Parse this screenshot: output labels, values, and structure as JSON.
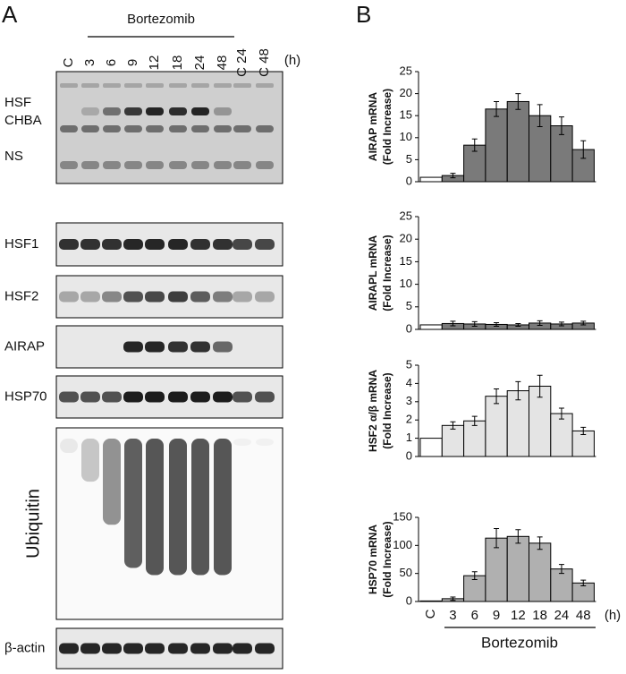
{
  "panel_a": {
    "label": "A",
    "treatment": "Bortezomib",
    "unit": "(h)",
    "lanes": [
      "C",
      "3",
      "6",
      "9",
      "12",
      "18",
      "24",
      "48",
      "C 24",
      "C 48"
    ],
    "emsa_labels": [
      "HSF",
      "CHBA",
      "NS"
    ],
    "blots": [
      "HSF1",
      "HSF2",
      "AIRAP",
      "HSP70",
      "Ubiquitin",
      "β-actin"
    ]
  },
  "panel_b_label": "B",
  "chart_data": [
    {
      "type": "bar",
      "ylabel": [
        "AIRAP mRNA",
        "(Fold Increase)"
      ],
      "values": [
        1,
        1.4,
        8.3,
        16.5,
        18.2,
        15,
        12.7,
        7.3
      ],
      "errors": [
        null,
        0.5,
        1.4,
        1.7,
        1.8,
        2.5,
        2.0,
        2.0
      ],
      "color": "#7a7a7a",
      "control_color": "#ffffff",
      "ylim": [
        0,
        25
      ],
      "yticks": [
        0,
        5,
        10,
        15,
        20,
        25
      ]
    },
    {
      "type": "bar",
      "ylabel": [
        "AIRAPL mRNA",
        "(Fold Increase)"
      ],
      "values": [
        1,
        1.3,
        1.2,
        1.1,
        1.0,
        1.4,
        1.2,
        1.4
      ],
      "errors": [
        null,
        0.5,
        0.5,
        0.4,
        0.3,
        0.5,
        0.4,
        0.4
      ],
      "color": "#7a7a7a",
      "control_color": "#ffffff",
      "ylim": [
        0,
        25
      ],
      "yticks": [
        0,
        5,
        10,
        15,
        20,
        25
      ]
    },
    {
      "type": "bar",
      "ylabel": [
        "HSF2 α/β mRNA",
        "(Fold Increase)"
      ],
      "values": [
        1,
        1.7,
        1.95,
        3.3,
        3.6,
        3.85,
        2.35,
        1.4
      ],
      "errors": [
        null,
        0.2,
        0.25,
        0.4,
        0.5,
        0.6,
        0.3,
        0.2
      ],
      "color": "#e4e4e4",
      "control_color": "#ffffff",
      "ylim": [
        0,
        5
      ],
      "yticks": [
        0,
        1,
        2,
        3,
        4,
        5
      ]
    },
    {
      "type": "bar",
      "ylabel": [
        "HSP70 mRNA",
        "(Fold Increase)"
      ],
      "values": [
        1,
        5,
        46,
        113,
        116,
        104,
        58,
        33
      ],
      "errors": [
        null,
        3,
        7,
        17,
        12,
        11,
        8,
        5
      ],
      "color": "#b0b0b0",
      "control_color": "#ffffff",
      "ylim": [
        0,
        150
      ],
      "yticks": [
        0,
        50,
        100,
        150
      ],
      "categories": [
        "C",
        "3",
        "6",
        "9",
        "12",
        "18",
        "24",
        "48"
      ],
      "x_unit": "(h)",
      "xlabel": "Bortezomib"
    }
  ]
}
